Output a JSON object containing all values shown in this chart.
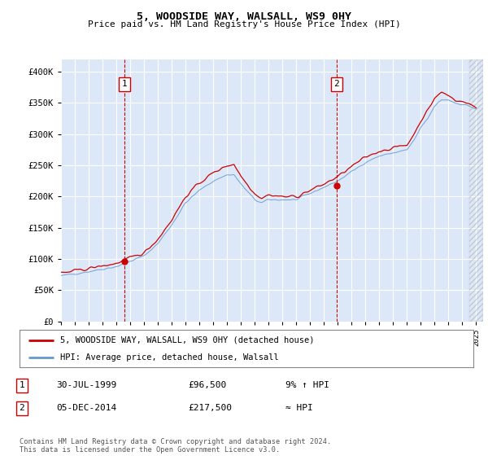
{
  "title": "5, WOODSIDE WAY, WALSALL, WS9 0HY",
  "subtitle": "Price paid vs. HM Land Registry's House Price Index (HPI)",
  "legend_entry1": "5, WOODSIDE WAY, WALSALL, WS9 0HY (detached house)",
  "legend_entry2": "HPI: Average price, detached house, Walsall",
  "annotation1_date": "30-JUL-1999",
  "annotation1_price": "£96,500",
  "annotation1_hpi": "9% ↑ HPI",
  "annotation2_date": "05-DEC-2014",
  "annotation2_price": "£217,500",
  "annotation2_hpi": "≈ HPI",
  "footer": "Contains HM Land Registry data © Crown copyright and database right 2024.\nThis data is licensed under the Open Government Licence v3.0.",
  "plot_bg_color": "#dce8f8",
  "line_color_hpi": "#6699cc",
  "line_color_price": "#cc0000",
  "vline_color": "#cc0000",
  "dot_color": "#cc0000",
  "ylim": [
    0,
    420000
  ],
  "yticks": [
    0,
    50000,
    100000,
    150000,
    200000,
    250000,
    300000,
    350000,
    400000
  ],
  "ytick_labels": [
    "£0",
    "£50K",
    "£100K",
    "£150K",
    "£200K",
    "£250K",
    "£300K",
    "£350K",
    "£400K"
  ],
  "xlim_start": 1995.0,
  "xlim_end": 2025.5,
  "sale1_year": 1999.58,
  "sale1_price": 96500,
  "sale2_year": 2014.92,
  "sale2_price": 217500,
  "hatch_start": 2024.5
}
